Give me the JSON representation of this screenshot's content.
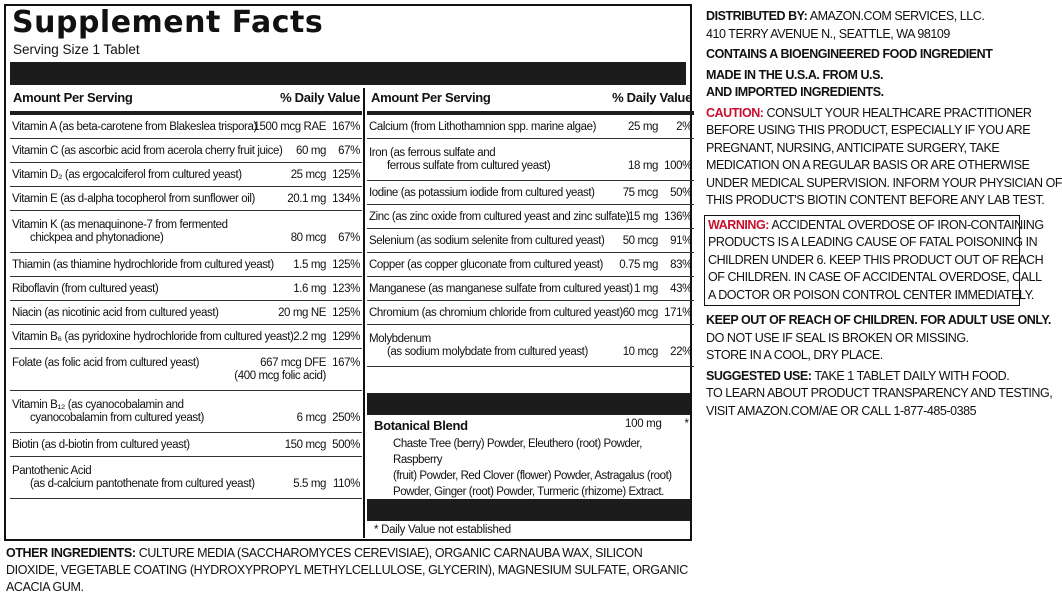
{
  "title": "Supplement Facts",
  "serving_size": "Serving Size 1 Tablet",
  "headers": {
    "amount": "Amount Per Serving",
    "dv": "% Daily Value"
  },
  "left_rows": [
    {
      "name": "Vitamin A (as beta-carotene from Blakeslea trispora)",
      "amount": "1500 mcg RAE",
      "dv": "167%"
    },
    {
      "name": "Vitamin C (as ascorbic acid from acerola cherry fruit juice)",
      "amount": "60 mg",
      "dv": "67%"
    },
    {
      "name": "Vitamin D₂ (as ergocalciferol from cultured yeast)",
      "amount": "25 mcg",
      "dv": "125%"
    },
    {
      "name": "Vitamin E (as d-alpha tocopherol from sunflower oil)",
      "amount": "20.1 mg",
      "dv": "134%"
    },
    {
      "name": "Vitamin K (as menaquinone-7 from fermented",
      "name2": "chickpea and phytonadione)",
      "amount": "80 mcg",
      "dv": "67%"
    },
    {
      "name": "Thiamin (as thiamine hydrochloride from cultured yeast)",
      "amount": "1.5 mg",
      "dv": "125%"
    },
    {
      "name": "Riboflavin (from cultured yeast)",
      "amount": "1.6 mg",
      "dv": "123%"
    },
    {
      "name": "Niacin (as nicotinic acid from cultured yeast)",
      "amount": "20 mg NE",
      "dv": "125%"
    },
    {
      "name": "Vitamin B₆ (as pyridoxine hydrochloride from cultured yeast)",
      "amount": "2.2 mg",
      "dv": "129%"
    },
    {
      "name": "Folate (as folic acid from cultured yeast)",
      "amount": "667 mcg DFE",
      "amount2": "(400 mcg folic acid)",
      "dv": "167%"
    },
    {
      "name": "Vitamin B₁₂ (as cyanocobalamin and",
      "name2": "cyanocobalamin from cultured yeast)",
      "amount": "6 mcg",
      "dv": "250%"
    },
    {
      "name": "Biotin (as d-biotin from cultured yeast)",
      "amount": "150 mcg",
      "dv": "500%"
    },
    {
      "name": "Pantothenic Acid",
      "name2": "(as d-calcium pantothenate from cultured yeast)",
      "amount": "5.5 mg",
      "dv": "110%"
    }
  ],
  "right_rows": [
    {
      "name": "Calcium (from Lithothamnion spp. marine algae)",
      "amount": "25 mg",
      "dv": "2%"
    },
    {
      "name": "Iron (as ferrous sulfate and",
      "name2": "ferrous sulfate from cultured yeast)",
      "amount": "18 mg",
      "dv": "100%"
    },
    {
      "name": "Iodine (as potassium iodide from cultured yeast)",
      "amount": "75 mcg",
      "dv": "50%"
    },
    {
      "name": "Zinc (as zinc oxide from cultured yeast and zinc sulfate)",
      "amount": "15 mg",
      "dv": "136%"
    },
    {
      "name": "Selenium (as sodium selenite from cultured yeast)",
      "amount": "50 mcg",
      "dv": "91%"
    },
    {
      "name": "Copper (as copper gluconate from cultured yeast)",
      "amount": "0.75 mg",
      "dv": "83%"
    },
    {
      "name": "Manganese (as manganese sulfate from cultured yeast)",
      "amount": "1 mg",
      "dv": "43%"
    },
    {
      "name": "Chromium (as chromium chloride from cultured yeast)",
      "amount": "60 mcg",
      "dv": "171%"
    },
    {
      "name": "Molybdenum",
      "name2": "(as sodium molybdate from cultured yeast)",
      "amount": "10 mcg",
      "dv": "22%"
    }
  ],
  "botanical": {
    "title": "Botanical Blend",
    "amount": "100 mg",
    "dv": "*",
    "lines": [
      "Chaste Tree (berry) Powder, Eleuthero (root) Powder, Raspberry",
      "(fruit) Powder, Red Clover (flower) Powder, Astragalus (root)",
      "Powder, Ginger (root) Powder, Turmeric (rhizome) Extract."
    ]
  },
  "dv_note": "* Daily Value not established",
  "other_ingredients": {
    "label": "OTHER INGREDIENTS:",
    "text": "CULTURE MEDIA (SACCHAROMYCES CEREVISIAE), ORGANIC CARNAUBA WAX, SILICON DIOXIDE, VEGETABLE COATING (HYDROXYPROPYL METHYLCELLULOSE, GLYCERIN), MAGNESIUM SULFATE, ORGANIC ACACIA GUM."
  },
  "right_panel": {
    "distributed_label": "DISTRIBUTED BY:",
    "distributed_line1": "AMAZON.COM SERVICES, LLC.",
    "distributed_line2": "410 TERRY AVENUE N., SEATTLE, WA 98109",
    "bioengineered": "CONTAINS A BIOENGINEERED FOOD INGREDIENT",
    "made_in_1": "MADE IN THE U.S.A. FROM U.S.",
    "made_in_2": "AND IMPORTED INGREDIENTS.",
    "caution_label": "CAUTION:",
    "caution_lines": [
      "CONSULT YOUR HEALTHCARE PRACTITIONER",
      "BEFORE USING THIS PRODUCT, ESPECIALLY IF YOU ARE",
      "PREGNANT, NURSING, ANTICIPATE SURGERY, TAKE",
      "MEDICATION ON A REGULAR BASIS OR ARE OTHERWISE",
      "UNDER MEDICAL SUPERVISION. INFORM YOUR PHYSICIAN OF",
      "THIS PRODUCT'S BIOTIN CONTENT BEFORE ANY LAB TEST."
    ],
    "warning_label": "WARNING:",
    "warning_lines": [
      "ACCIDENTAL OVERDOSE OF IRON-CONTAINING",
      "PRODUCTS IS A LEADING CAUSE OF FATAL POISONING IN",
      "CHILDREN UNDER 6. KEEP THIS PRODUCT OUT OF REACH",
      "OF CHILDREN. IN CASE OF ACCIDENTAL OVERDOSE, CALL",
      "A DOCTOR OR POISON CONTROL CENTER IMMEDIATELY."
    ],
    "keep_out": "KEEP OUT OF REACH OF CHILDREN. FOR ADULT USE ONLY.",
    "seal_1": "DO NOT USE IF SEAL IS BROKEN OR MISSING.",
    "seal_2": "STORE IN A COOL, DRY PLACE.",
    "suggested_label": "SUGGESTED USE:",
    "suggested_text": "TAKE 1 TABLET DAILY WITH FOOD.",
    "learn_1": "TO LEARN ABOUT PRODUCT TRANSPARENCY AND TESTING,",
    "learn_2": "VISIT AMAZON.COM/AE OR CALL 1-877-485-0385"
  }
}
